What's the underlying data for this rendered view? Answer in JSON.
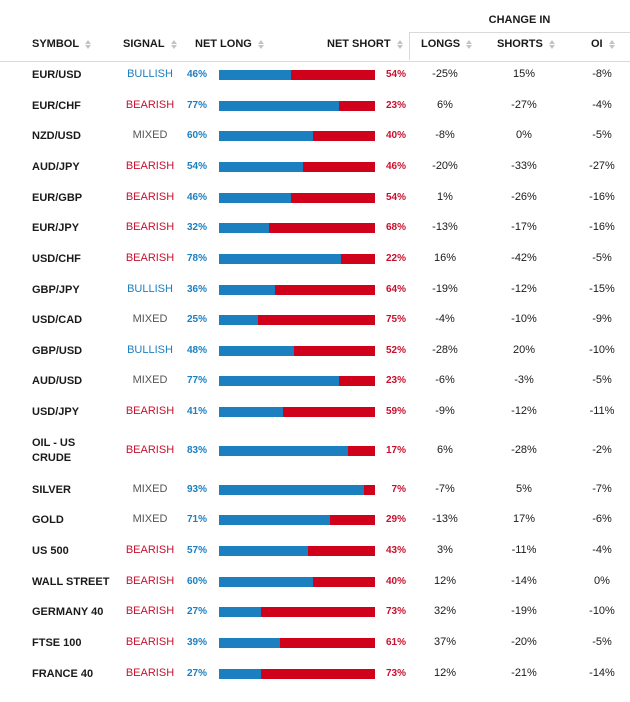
{
  "header": {
    "change_in": "CHANGE IN",
    "symbol": "SYMBOL",
    "signal": "SIGNAL",
    "net_long": "NET LONG",
    "net_short": "NET SHORT",
    "longs": "LONGS",
    "shorts": "SHORTS",
    "oi": "OI"
  },
  "colors": {
    "long": "#1b7fc0",
    "short": "#d0021b",
    "mixed": "#555555"
  },
  "rows": [
    {
      "symbol": "EUR/USD",
      "signal": "BULLISH",
      "long": "46%",
      "short": "54%",
      "longs": "-25%",
      "shorts": "15%",
      "oi": "-8%",
      "long_pct": 46
    },
    {
      "symbol": "EUR/CHF",
      "signal": "BEARISH",
      "long": "77%",
      "short": "23%",
      "longs": "6%",
      "shorts": "-27%",
      "oi": "-4%",
      "long_pct": 77
    },
    {
      "symbol": "NZD/USD",
      "signal": "MIXED",
      "long": "60%",
      "short": "40%",
      "longs": "-8%",
      "shorts": "0%",
      "oi": "-5%",
      "long_pct": 60
    },
    {
      "symbol": "AUD/JPY",
      "signal": "BEARISH",
      "long": "54%",
      "short": "46%",
      "longs": "-20%",
      "shorts": "-33%",
      "oi": "-27%",
      "long_pct": 54
    },
    {
      "symbol": "EUR/GBP",
      "signal": "BEARISH",
      "long": "46%",
      "short": "54%",
      "longs": "1%",
      "shorts": "-26%",
      "oi": "-16%",
      "long_pct": 46
    },
    {
      "symbol": "EUR/JPY",
      "signal": "BEARISH",
      "long": "32%",
      "short": "68%",
      "longs": "-13%",
      "shorts": "-17%",
      "oi": "-16%",
      "long_pct": 32
    },
    {
      "symbol": "USD/CHF",
      "signal": "BEARISH",
      "long": "78%",
      "short": "22%",
      "longs": "16%",
      "shorts": "-42%",
      "oi": "-5%",
      "long_pct": 78
    },
    {
      "symbol": "GBP/JPY",
      "signal": "BULLISH",
      "long": "36%",
      "short": "64%",
      "longs": "-19%",
      "shorts": "-12%",
      "oi": "-15%",
      "long_pct": 36
    },
    {
      "symbol": "USD/CAD",
      "signal": "MIXED",
      "long": "25%",
      "short": "75%",
      "longs": "-4%",
      "shorts": "-10%",
      "oi": "-9%",
      "long_pct": 25
    },
    {
      "symbol": "GBP/USD",
      "signal": "BULLISH",
      "long": "48%",
      "short": "52%",
      "longs": "-28%",
      "shorts": "20%",
      "oi": "-10%",
      "long_pct": 48
    },
    {
      "symbol": "AUD/USD",
      "signal": "MIXED",
      "long": "77%",
      "short": "23%",
      "longs": "-6%",
      "shorts": "-3%",
      "oi": "-5%",
      "long_pct": 77
    },
    {
      "symbol": "USD/JPY",
      "signal": "BEARISH",
      "long": "41%",
      "short": "59%",
      "longs": "-9%",
      "shorts": "-12%",
      "oi": "-11%",
      "long_pct": 41
    },
    {
      "symbol": "OIL - US",
      "symbol2": "CRUDE",
      "signal": "BEARISH",
      "long": "83%",
      "short": "17%",
      "longs": "6%",
      "shorts": "-28%",
      "oi": "-2%",
      "long_pct": 83
    },
    {
      "symbol": "SILVER",
      "signal": "MIXED",
      "long": "93%",
      "short": "7%",
      "longs": "-7%",
      "shorts": "5%",
      "oi": "-7%",
      "long_pct": 93
    },
    {
      "symbol": "GOLD",
      "signal": "MIXED",
      "long": "71%",
      "short": "29%",
      "longs": "-13%",
      "shorts": "17%",
      "oi": "-6%",
      "long_pct": 71
    },
    {
      "symbol": "US 500",
      "signal": "BEARISH",
      "long": "57%",
      "short": "43%",
      "longs": "3%",
      "shorts": "-11%",
      "oi": "-4%",
      "long_pct": 57
    },
    {
      "symbol": "WALL STREET",
      "signal": "BEARISH",
      "long": "60%",
      "short": "40%",
      "longs": "12%",
      "shorts": "-14%",
      "oi": "0%",
      "long_pct": 60
    },
    {
      "symbol": "GERMANY 40",
      "signal": "BEARISH",
      "long": "27%",
      "short": "73%",
      "longs": "32%",
      "shorts": "-19%",
      "oi": "-10%",
      "long_pct": 27
    },
    {
      "symbol": "FTSE 100",
      "signal": "BEARISH",
      "long": "39%",
      "short": "61%",
      "longs": "37%",
      "shorts": "-20%",
      "oi": "-5%",
      "long_pct": 39
    },
    {
      "symbol": "FRANCE 40",
      "signal": "BEARISH",
      "long": "27%",
      "short": "73%",
      "longs": "12%",
      "shorts": "-21%",
      "oi": "-14%",
      "long_pct": 27
    }
  ]
}
